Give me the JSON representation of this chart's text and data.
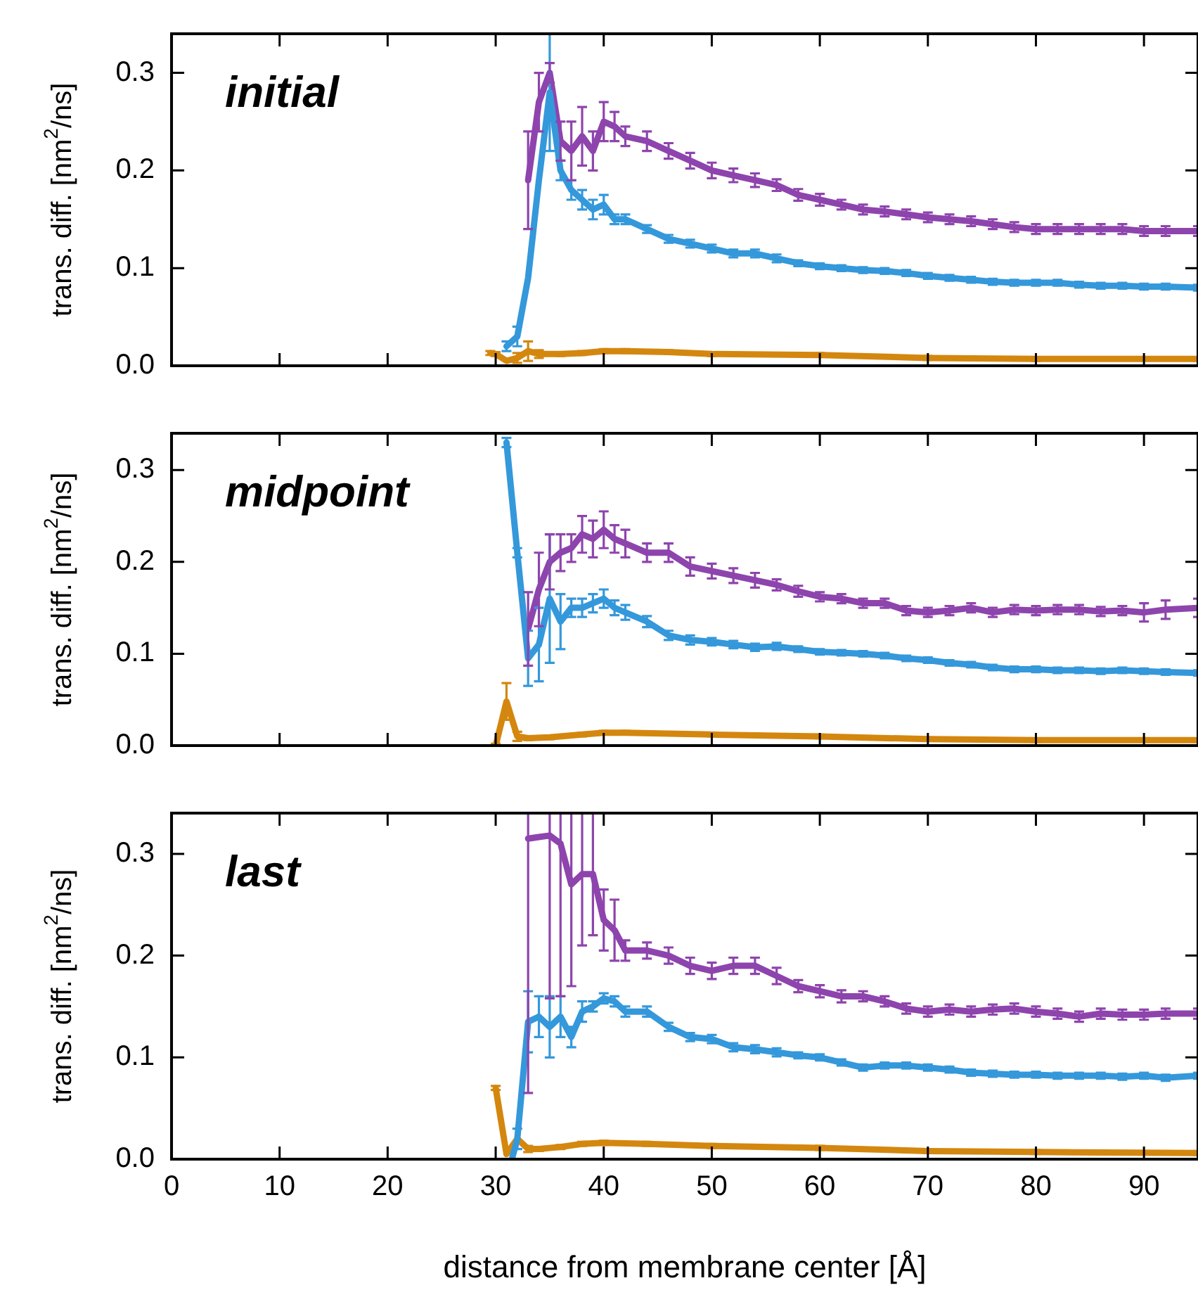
{
  "chart_data": [
    {
      "type": "line",
      "title": "initial",
      "ylabel": "trans. diff. [nm$^{2}$/ns]",
      "xlim": [
        0,
        95
      ],
      "xticks": [
        0,
        10,
        20,
        30,
        40,
        50,
        60,
        70,
        80,
        90
      ],
      "ylim": [
        0,
        0.34
      ],
      "yticks": [
        {
          "value": 0,
          "label": "0.0"
        },
        {
          "value": 0.1,
          "label": "0.1"
        },
        {
          "value": 0.2,
          "label": "0.2"
        },
        {
          "value": 0.3,
          "label": "0.3"
        }
      ],
      "tick_labels": "y",
      "series": [
        {
          "color": "#3498db",
          "x": [
            31,
            32,
            33,
            34,
            35,
            36,
            37,
            38,
            39,
            40,
            41,
            42,
            44,
            46,
            48,
            50,
            52,
            54,
            56,
            58,
            60,
            62,
            64,
            66,
            68,
            70,
            72,
            74,
            76,
            78,
            80,
            82,
            84,
            86,
            88,
            90,
            92,
            95
          ],
          "values": [
            0.02,
            0.03,
            0.09,
            0.19,
            0.28,
            0.2,
            0.18,
            0.17,
            0.16,
            0.165,
            0.15,
            0.15,
            0.14,
            0.13,
            0.125,
            0.12,
            0.115,
            0.115,
            0.11,
            0.105,
            0.102,
            0.1,
            0.098,
            0.097,
            0.095,
            0.092,
            0.09,
            0.088,
            0.086,
            0.085,
            0.085,
            0.085,
            0.083,
            0.082,
            0.082,
            0.081,
            0.081,
            0.08
          ],
          "errors": [
            0.005,
            0.01,
            null,
            null,
            0.06,
            0.01,
            0.01,
            0.01,
            0.01,
            0.01,
            0.005,
            0.005,
            0.004,
            0.004,
            0.004,
            0.004,
            0.004,
            0.004,
            0.004,
            0.003,
            0.003,
            0.003,
            0.003,
            0.003,
            0.003,
            0.003,
            0.003,
            0.003,
            0.003,
            0.003,
            0.003,
            0.003,
            0.003,
            0.003,
            0.003,
            0.003,
            0.003,
            0.003
          ]
        },
        {
          "color": "#8e44ad",
          "x": [
            33,
            34,
            35,
            36,
            37,
            38,
            39,
            40,
            41,
            42,
            44,
            46,
            48,
            50,
            52,
            54,
            56,
            58,
            60,
            62,
            64,
            66,
            68,
            70,
            72,
            74,
            76,
            78,
            80,
            82,
            84,
            86,
            88,
            90,
            92,
            95
          ],
          "values": [
            0.19,
            0.27,
            0.3,
            0.23,
            0.22,
            0.235,
            0.22,
            0.25,
            0.245,
            0.235,
            0.23,
            0.22,
            0.21,
            0.2,
            0.195,
            0.19,
            0.185,
            0.175,
            0.17,
            0.165,
            0.16,
            0.158,
            0.155,
            0.152,
            0.15,
            0.148,
            0.145,
            0.142,
            0.14,
            0.14,
            0.14,
            0.14,
            0.14,
            0.138,
            0.138,
            0.138
          ],
          "errors": [
            0.05,
            0.03,
            0.01,
            0.02,
            0.03,
            0.03,
            0.02,
            0.02,
            0.015,
            0.01,
            0.01,
            0.008,
            0.008,
            0.008,
            0.007,
            0.007,
            0.006,
            0.006,
            0.006,
            0.005,
            0.005,
            0.005,
            0.005,
            0.005,
            0.005,
            0.005,
            0.005,
            0.005,
            0.005,
            0.005,
            0.005,
            0.005,
            0.005,
            0.005,
            0.005,
            0.005
          ]
        },
        {
          "color": "#d4870e",
          "x": [
            29.5,
            30,
            31,
            32,
            33,
            34,
            36,
            38,
            40,
            42,
            46,
            50,
            60,
            70,
            80,
            95
          ],
          "values": [
            0.013,
            0.012,
            0.005,
            0.008,
            0.015,
            0.012,
            0.012,
            0.013,
            0.015,
            0.015,
            0.014,
            0.012,
            0.011,
            0.008,
            0.007,
            0.007
          ],
          "errors": [
            0.002,
            0.002,
            null,
            0.005,
            0.01,
            0.004,
            0.002,
            0.002,
            0.002,
            0.002,
            0.002,
            0.002,
            0.002,
            0.002,
            0.002,
            0.002
          ]
        }
      ]
    },
    {
      "type": "line",
      "title": "midpoint",
      "ylabel": "trans. diff. [nm$^{2}$/ns]",
      "xlim": [
        0,
        95
      ],
      "xticks": [
        0,
        10,
        20,
        30,
        40,
        50,
        60,
        70,
        80,
        90
      ],
      "ylim": [
        0,
        0.34
      ],
      "yticks": [
        {
          "value": 0,
          "label": "0.0"
        },
        {
          "value": 0.1,
          "label": "0.1"
        },
        {
          "value": 0.2,
          "label": "0.2"
        },
        {
          "value": 0.3,
          "label": "0.3"
        }
      ],
      "tick_labels": "y",
      "series": [
        {
          "color": "#3498db",
          "x": [
            31,
            32,
            33,
            34,
            35,
            36,
            37,
            38,
            39,
            40,
            41,
            42,
            44,
            46,
            48,
            50,
            52,
            54,
            56,
            58,
            60,
            62,
            64,
            66,
            68,
            70,
            72,
            74,
            76,
            78,
            80,
            82,
            84,
            86,
            88,
            90,
            92,
            95
          ],
          "values": [
            0.33,
            0.21,
            0.095,
            0.11,
            0.16,
            0.135,
            0.15,
            0.15,
            0.155,
            0.16,
            0.15,
            0.145,
            0.135,
            0.12,
            0.115,
            0.113,
            0.11,
            0.107,
            0.108,
            0.105,
            0.102,
            0.101,
            0.1,
            0.098,
            0.095,
            0.093,
            0.09,
            0.088,
            0.085,
            0.083,
            0.083,
            0.082,
            0.082,
            0.081,
            0.082,
            0.081,
            0.08,
            0.079
          ],
          "errors": [
            0.005,
            0.005,
            0.03,
            0.04,
            0.07,
            0.03,
            0.01,
            0.01,
            0.01,
            0.01,
            0.008,
            0.008,
            0.006,
            0.005,
            0.005,
            0.004,
            0.004,
            0.004,
            0.004,
            0.003,
            0.003,
            0.003,
            0.003,
            0.003,
            0.003,
            0.003,
            0.003,
            0.003,
            0.003,
            0.003,
            0.003,
            0.003,
            0.003,
            0.003,
            0.003,
            0.003,
            0.003,
            0.003
          ]
        },
        {
          "color": "#8e44ad",
          "x": [
            33,
            34,
            35,
            36,
            37,
            38,
            39,
            40,
            41,
            42,
            44,
            46,
            48,
            50,
            52,
            54,
            56,
            58,
            60,
            62,
            64,
            66,
            68,
            70,
            72,
            74,
            76,
            78,
            80,
            82,
            84,
            86,
            88,
            90,
            92,
            95
          ],
          "values": [
            0.127,
            0.17,
            0.2,
            0.21,
            0.215,
            0.23,
            0.225,
            0.235,
            0.225,
            0.22,
            0.21,
            0.21,
            0.195,
            0.19,
            0.185,
            0.18,
            0.175,
            0.168,
            0.162,
            0.16,
            0.155,
            0.155,
            0.147,
            0.145,
            0.147,
            0.15,
            0.145,
            0.148,
            0.147,
            0.148,
            0.148,
            0.146,
            0.147,
            0.145,
            0.148,
            0.15
          ],
          "errors": [
            0.04,
            0.04,
            0.03,
            0.02,
            0.015,
            0.02,
            0.02,
            0.02,
            0.015,
            0.015,
            0.01,
            0.01,
            0.01,
            0.008,
            0.008,
            0.008,
            0.006,
            0.006,
            0.005,
            0.005,
            0.005,
            0.005,
            0.005,
            0.005,
            0.005,
            0.005,
            0.005,
            0.005,
            0.005,
            0.005,
            0.005,
            0.005,
            0.005,
            0.01,
            0.01,
            0.01
          ]
        },
        {
          "color": "#d4870e",
          "x": [
            30,
            31,
            32,
            33,
            35,
            38,
            40,
            42,
            50,
            60,
            70,
            80,
            95
          ],
          "values": [
            0,
            0.048,
            0.01,
            0.008,
            0.009,
            0.012,
            0.014,
            0.014,
            0.012,
            0.01,
            0.007,
            0.006,
            0.006
          ],
          "errors": [
            0.002,
            0.02,
            0.005,
            0.002,
            0.002,
            0.002,
            0.002,
            0.002,
            0.002,
            0.002,
            0.002,
            0.002,
            0.002
          ]
        }
      ]
    },
    {
      "type": "line",
      "title": "last",
      "xlabel": "distance from membrane center [Å]",
      "ylabel": "trans. diff. [nm$^{2}$/ns]",
      "xlim": [
        0,
        95
      ],
      "xticks": [
        0,
        10,
        20,
        30,
        40,
        50,
        60,
        70,
        80,
        90
      ],
      "ylim": [
        0,
        0.34
      ],
      "yticks": [
        {
          "value": 0,
          "label": "0.0"
        },
        {
          "value": 0.1,
          "label": "0.1"
        },
        {
          "value": 0.2,
          "label": "0.2"
        },
        {
          "value": 0.3,
          "label": "0.3"
        }
      ],
      "series": [
        {
          "color": "#3498db",
          "x": [
            31.5,
            32,
            33,
            34,
            35,
            36,
            37,
            38,
            39,
            40,
            41,
            42,
            44,
            46,
            48,
            50,
            52,
            54,
            56,
            58,
            60,
            62,
            64,
            66,
            68,
            70,
            72,
            74,
            76,
            78,
            80,
            82,
            84,
            86,
            88,
            90,
            92,
            95
          ],
          "values": [
            0,
            0.02,
            0.135,
            0.14,
            0.13,
            0.14,
            0.12,
            0.145,
            0.15,
            0.158,
            0.155,
            0.145,
            0.145,
            0.13,
            0.12,
            0.118,
            0.11,
            0.108,
            0.105,
            0.102,
            0.1,
            0.095,
            0.09,
            0.092,
            0.092,
            0.09,
            0.088,
            0.085,
            0.084,
            0.083,
            0.083,
            0.082,
            0.082,
            0.082,
            0.081,
            0.082,
            0.08,
            0.082
          ],
          "errors": [
            null,
            0.01,
            0.03,
            0.02,
            0.03,
            0.02,
            0.01,
            0.01,
            0.005,
            0.005,
            0.005,
            0.005,
            0.005,
            0.004,
            0.004,
            0.004,
            0.004,
            0.004,
            0.004,
            0.003,
            0.003,
            0.003,
            0.003,
            0.003,
            0.003,
            0.003,
            0.003,
            0.003,
            0.003,
            0.003,
            0.003,
            0.003,
            0.003,
            0.003,
            0.003,
            0.003,
            0.003,
            0.003
          ]
        },
        {
          "color": "#8e44ad",
          "x": [
            33,
            35,
            36,
            37,
            38,
            39,
            40,
            41,
            42,
            44,
            46,
            48,
            50,
            52,
            54,
            56,
            58,
            60,
            62,
            64,
            66,
            68,
            70,
            72,
            74,
            76,
            78,
            80,
            82,
            84,
            86,
            88,
            90,
            92,
            95
          ],
          "values": [
            0.315,
            0.318,
            0.31,
            0.27,
            0.28,
            0.28,
            0.235,
            0.225,
            0.205,
            0.205,
            0.2,
            0.19,
            0.185,
            0.19,
            0.19,
            0.18,
            0.17,
            0.165,
            0.16,
            0.16,
            0.155,
            0.148,
            0.145,
            0.147,
            0.145,
            0.147,
            0.148,
            0.145,
            0.143,
            0.14,
            0.143,
            0.142,
            0.142,
            0.143,
            0.143
          ],
          "errors": [
            0.25,
            0.16,
            0.15,
            0.1,
            0.07,
            0.06,
            0.03,
            0.03,
            0.01,
            0.008,
            0.008,
            0.008,
            0.008,
            0.008,
            0.008,
            0.008,
            0.006,
            0.006,
            0.006,
            0.005,
            0.005,
            0.005,
            0.005,
            0.005,
            0.005,
            0.005,
            0.005,
            0.005,
            0.005,
            0.005,
            0.005,
            0.005,
            0.005,
            0.005,
            0.005
          ]
        },
        {
          "color": "#d4870e",
          "x": [
            30,
            31,
            32,
            33,
            34,
            36,
            38,
            40,
            44,
            50,
            60,
            70,
            80,
            95
          ],
          "values": [
            0.07,
            0.005,
            0.02,
            0.01,
            0.01,
            0.012,
            0.015,
            0.016,
            0.015,
            0.013,
            0.011,
            0.008,
            0.007,
            0.006
          ],
          "errors": [
            0.002,
            null,
            null,
            0.003,
            0.002,
            0.002,
            0.002,
            0.002,
            0.002,
            0.002,
            0.002,
            0.002,
            0.002,
            0.002
          ]
        }
      ]
    }
  ]
}
